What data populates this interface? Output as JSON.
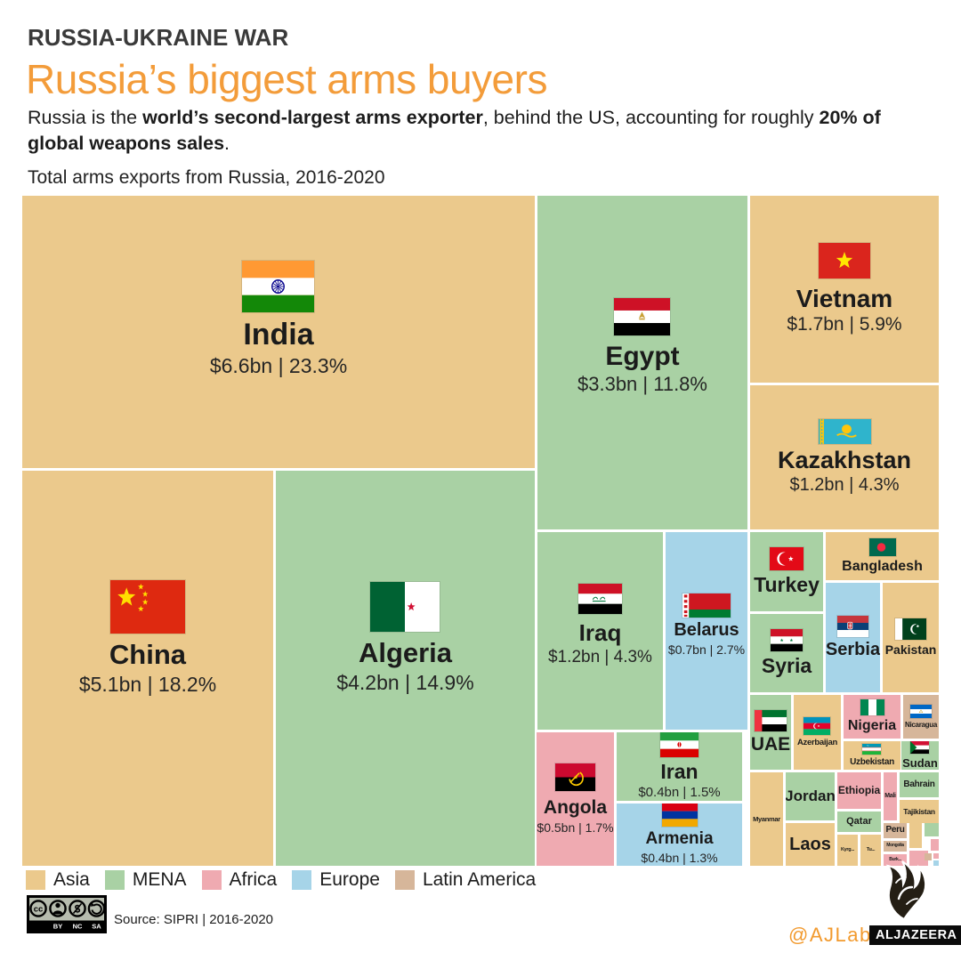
{
  "header": {
    "kicker": "RUSSIA-UKRAINE WAR",
    "title": "Russia’s biggest arms buyers",
    "intro_parts": [
      {
        "text": "Russia is the ",
        "bold": false
      },
      {
        "text": "world’s second-largest arms exporter",
        "bold": true
      },
      {
        "text": ", behind the US, accounting for roughly ",
        "bold": false
      },
      {
        "text": "20% of global weapons sales",
        "bold": true
      },
      {
        "text": ".",
        "bold": false
      }
    ]
  },
  "chart_data": {
    "type": "treemap",
    "title": "Total arms exports from Russia, 2016-2020",
    "legend_position": "bottom",
    "regions": [
      {
        "id": "asia",
        "label": "Asia",
        "color": "#ebc98c"
      },
      {
        "id": "mena",
        "label": "MENA",
        "color": "#a9d1a4"
      },
      {
        "id": "africa",
        "label": "Africa",
        "color": "#efaab1"
      },
      {
        "id": "europe",
        "label": "Europe",
        "color": "#a6d4e8"
      },
      {
        "id": "latam",
        "label": "Latin America",
        "color": "#d6b69a"
      }
    ],
    "items": [
      {
        "id": "india",
        "name": "India",
        "value": "$6.6bn",
        "share": "23.3%",
        "region": "asia"
      },
      {
        "id": "china",
        "name": "China",
        "value": "$5.1bn",
        "share": "18.2%",
        "region": "asia"
      },
      {
        "id": "algeria",
        "name": "Algeria",
        "value": "$4.2bn",
        "share": "14.9%",
        "region": "mena"
      },
      {
        "id": "egypt",
        "name": "Egypt",
        "value": "$3.3bn",
        "share": "11.8%",
        "region": "mena"
      },
      {
        "id": "vietnam",
        "name": "Vietnam",
        "value": "$1.7bn",
        "share": "5.9%",
        "region": "asia"
      },
      {
        "id": "kazakhstan",
        "name": "Kazakhstan",
        "value": "$1.2bn",
        "share": "4.3%",
        "region": "asia"
      },
      {
        "id": "iraq",
        "name": "Iraq",
        "value": "$1.2bn",
        "share": "4.3%",
        "region": "mena"
      },
      {
        "id": "belarus",
        "name": "Belarus",
        "value": "$0.7bn",
        "share": "2.7%",
        "region": "europe"
      },
      {
        "id": "angola",
        "name": "Angola",
        "value": "$0.5bn",
        "share": "1.7%",
        "region": "africa"
      },
      {
        "id": "iran",
        "name": "Iran",
        "value": "$0.4bn",
        "share": "1.5%",
        "region": "mena"
      },
      {
        "id": "armenia",
        "name": "Armenia",
        "value": "$0.4bn",
        "share": "1.3%",
        "region": "europe"
      },
      {
        "id": "turkey",
        "name": "Turkey",
        "region": "mena"
      },
      {
        "id": "syria",
        "name": "Syria",
        "region": "mena"
      },
      {
        "id": "serbia",
        "name": "Serbia",
        "region": "europe"
      },
      {
        "id": "pakistan",
        "name": "Pakistan",
        "region": "asia"
      },
      {
        "id": "bangladesh",
        "name": "Bangladesh",
        "region": "asia"
      },
      {
        "id": "uae",
        "name": "UAE",
        "region": "mena"
      },
      {
        "id": "azerbaijan",
        "name": "Azerbaijan",
        "region": "asia"
      },
      {
        "id": "nigeria",
        "name": "Nigeria",
        "region": "africa"
      },
      {
        "id": "nicaragua",
        "name": "Nicaragua",
        "region": "latam"
      },
      {
        "id": "uzbekistan",
        "name": "Uzbekistan",
        "region": "asia"
      },
      {
        "id": "sudan",
        "name": "Sudan",
        "region": "mena"
      },
      {
        "id": "myanmar",
        "name": "Myanmar",
        "region": "asia"
      },
      {
        "id": "jordan",
        "name": "Jordan",
        "region": "mena"
      },
      {
        "id": "laos",
        "name": "Laos",
        "region": "asia"
      },
      {
        "id": "ethiopia",
        "name": "Ethiopia",
        "region": "africa"
      },
      {
        "id": "qatar",
        "name": "Qatar",
        "region": "mena"
      },
      {
        "id": "mali",
        "name": "Mali",
        "region": "africa"
      },
      {
        "id": "bahrain",
        "name": "Bahrain",
        "region": "mena"
      },
      {
        "id": "tajikistan",
        "name": "Tajikistan",
        "region": "asia"
      },
      {
        "id": "peru",
        "name": "Peru",
        "region": "latam"
      },
      {
        "id": "mongolia",
        "name": "Mongolia",
        "region": "latam"
      },
      {
        "id": "kyrgyzstan",
        "name": "Kyrg...",
        "region": "asia"
      },
      {
        "id": "turkmenistan",
        "name": "Tu...",
        "region": "asia"
      },
      {
        "id": "burkina",
        "name": "Burk...",
        "region": "africa"
      },
      {
        "id": "extra1",
        "name": "",
        "region": "asia"
      },
      {
        "id": "extra2",
        "name": "",
        "region": "mena"
      },
      {
        "id": "extra3",
        "name": "",
        "region": "africa"
      },
      {
        "id": "extra4",
        "name": "",
        "region": "africa"
      },
      {
        "id": "extra5",
        "name": "",
        "region": "latam"
      },
      {
        "id": "extra6",
        "name": "",
        "region": "africa"
      },
      {
        "id": "extra7",
        "name": "",
        "region": "europe"
      }
    ]
  },
  "footer": {
    "license": "CC BY NC SA",
    "source": "Source: SIPRI | 2016-2020",
    "social": "@AJLabs",
    "brand": "ALJAZEERA"
  }
}
